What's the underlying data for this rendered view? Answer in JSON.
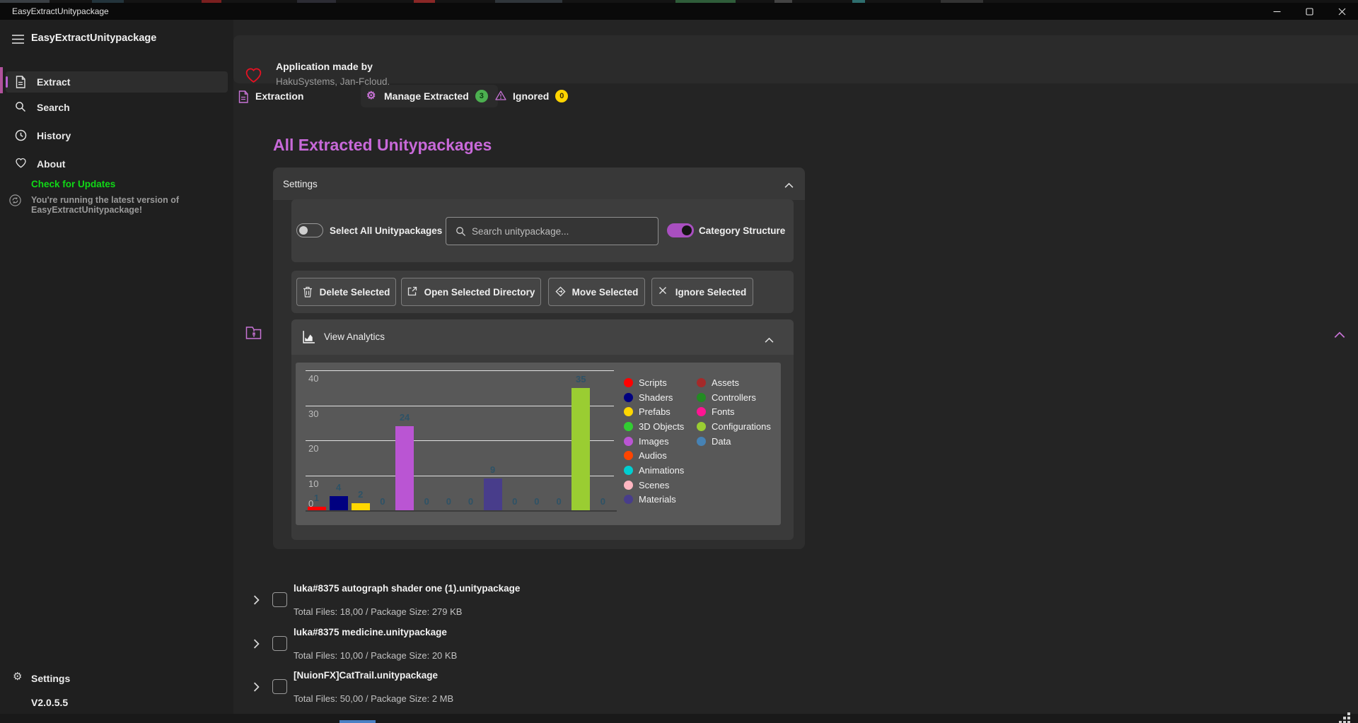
{
  "window": {
    "title": "EasyExtractUnitypackage"
  },
  "sidebar": {
    "title": "EasyExtractUnitypackage",
    "items": [
      {
        "label": "Extract",
        "icon": "document-icon",
        "selected": true
      },
      {
        "label": "Search",
        "icon": "search-icon",
        "selected": false
      },
      {
        "label": "History",
        "icon": "history-icon",
        "selected": false
      },
      {
        "label": "About",
        "icon": "heart-outline-icon",
        "selected": false
      }
    ],
    "update_link": "Check for Updates",
    "update_status": "You're running the latest version of EasyExtractUnitypackage!",
    "settings_label": "Settings",
    "version": "V2.0.5.5"
  },
  "header": {
    "title": "Application made by",
    "subtitle": "HakuSystems, Jan-Fcloud."
  },
  "tabs": [
    {
      "label": "Extraction",
      "icon": "document-icon",
      "selected": false,
      "badge": null
    },
    {
      "label": "Manage Extracted",
      "icon": "gear-icon",
      "selected": true,
      "badge": "3",
      "badge_bg": "#4caf50",
      "badge_fg": "#0b3d10"
    },
    {
      "label": "Ignored",
      "icon": "warning-icon",
      "selected": false,
      "badge": "0",
      "badge_bg": "#ffd400",
      "badge_fg": "#3d3000"
    }
  ],
  "page": {
    "title": "All Extracted Unitypackages"
  },
  "settings_panel": {
    "header": "Settings",
    "select_all_label": "Select All Unitypackages",
    "select_all_on": false,
    "search_placeholder": "Search unitypackage...",
    "category_label": "Category Structure",
    "category_on": true,
    "buttons": [
      {
        "label": "Delete Selected",
        "icon": "trash-icon"
      },
      {
        "label": "Open Selected Directory",
        "icon": "open-external-icon"
      },
      {
        "label": "Move Selected",
        "icon": "move-icon"
      },
      {
        "label": "Ignore Selected",
        "icon": "x-icon"
      }
    ]
  },
  "analytics": {
    "header": "View Analytics"
  },
  "chart_data": {
    "type": "bar",
    "categories": [
      "Scripts",
      "Shaders",
      "Prefabs",
      "3D Objects",
      "Images",
      "Audios",
      "Animations",
      "Scenes",
      "Materials",
      "Assets",
      "Controllers",
      "Fonts",
      "Configurations",
      "Data"
    ],
    "values": [
      1,
      4,
      2,
      0,
      24,
      0,
      0,
      0,
      9,
      0,
      0,
      0,
      35,
      0
    ],
    "colors": [
      "#ff0000",
      "#000080",
      "#ffd700",
      "#32cd32",
      "#ba55d3",
      "#ff4500",
      "#00ced1",
      "#ffb6c1",
      "#483d8b",
      "#a52a2a",
      "#228b22",
      "#ff1493",
      "#9acd32",
      "#4682b4"
    ],
    "yticks": [
      0,
      10,
      20,
      30,
      40
    ],
    "ylim": [
      0,
      44
    ],
    "grid": true,
    "legend_position": "right",
    "legend_columns": [
      9,
      5
    ],
    "title": ""
  },
  "packages": [
    {
      "name": "luka#8375 autograph shader one (1).unitypackage",
      "details": "Total Files: 18,00 / Package Size: 279 KB"
    },
    {
      "name": "luka#8375 medicine.unitypackage",
      "details": "Total Files: 10,00 / Package Size: 20 KB"
    },
    {
      "name": "[NuionFX]CatTrail.unitypackage",
      "details": "Total Files: 50,00 / Package Size: 2 MB"
    }
  ],
  "colors": {
    "accent_purple": "#c873d6",
    "page_title": "#c869d9",
    "update_green": "#10d916",
    "heart_red": "#e81123",
    "badge_green": "#4caf50",
    "badge_yellow": "#ffd400",
    "bar_value_label": "#2e5266",
    "scrollbar_blue": "#4a80c4"
  }
}
